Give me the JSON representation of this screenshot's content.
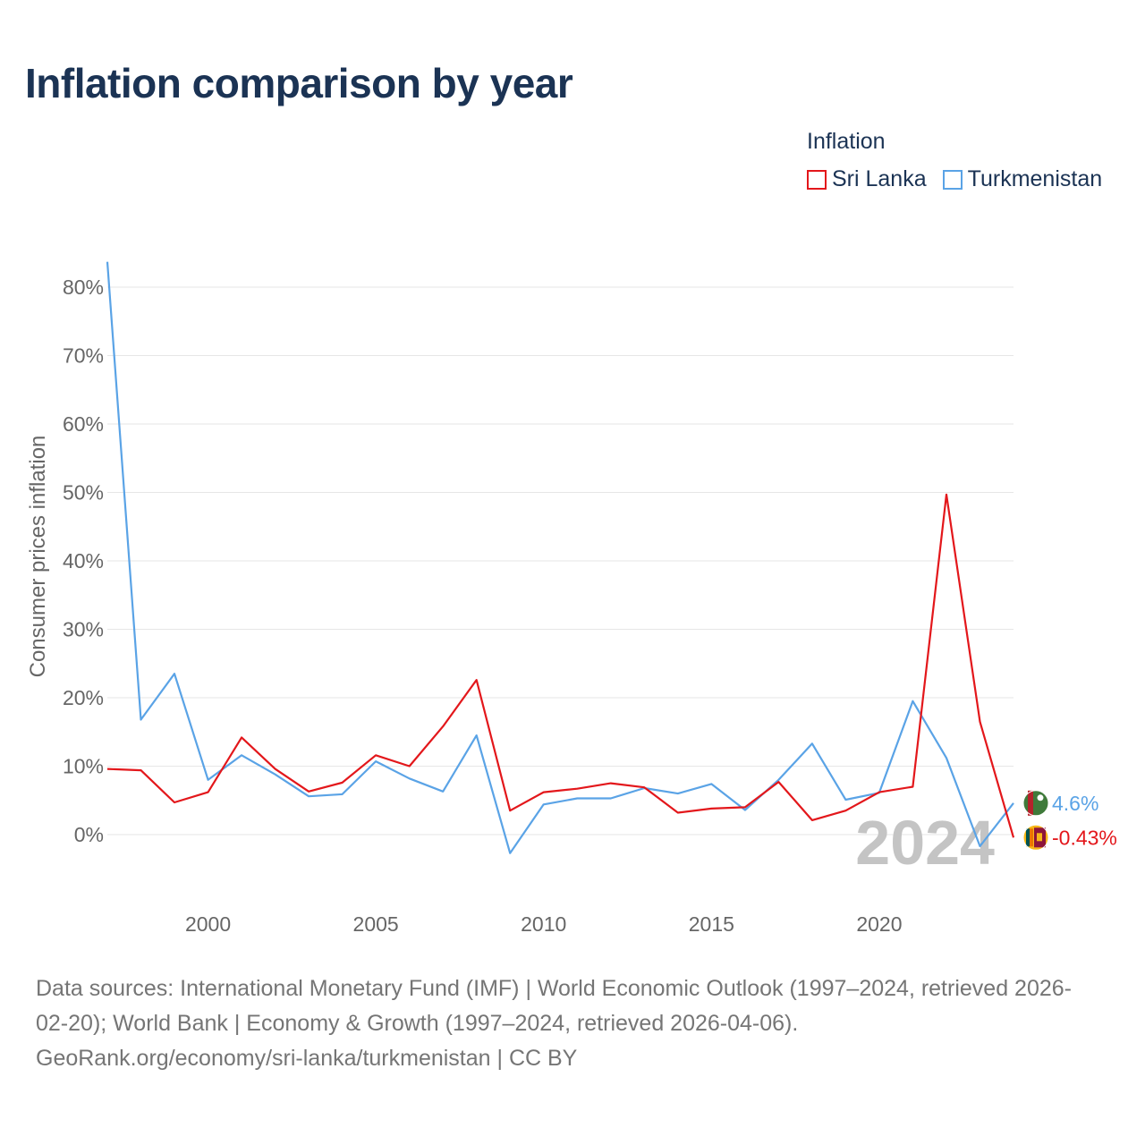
{
  "title": "Inflation comparison by year",
  "legend": {
    "title": "Inflation",
    "items": [
      {
        "label": "Sri Lanka",
        "color": "#e3171b"
      },
      {
        "label": "Turkmenistan",
        "color": "#5aa3e6"
      }
    ]
  },
  "chart_data": {
    "type": "line",
    "title": "Inflation comparison by year",
    "xlabel": "",
    "ylabel": "Consumer prices inflation",
    "x": [
      1997,
      1998,
      1999,
      2000,
      2001,
      2002,
      2003,
      2004,
      2005,
      2006,
      2007,
      2008,
      2009,
      2010,
      2011,
      2012,
      2013,
      2014,
      2015,
      2016,
      2017,
      2018,
      2019,
      2020,
      2021,
      2022,
      2023,
      2024
    ],
    "xlim": [
      1997,
      2024
    ],
    "xticks": [
      2000,
      2005,
      2010,
      2015,
      2020
    ],
    "ylim": [
      -10,
      85
    ],
    "yticks": [
      0,
      10,
      20,
      30,
      40,
      50,
      60,
      70,
      80
    ],
    "ytick_labels": [
      "0%",
      "10%",
      "20%",
      "30%",
      "40%",
      "50%",
      "60%",
      "70%",
      "80%"
    ],
    "grid": true,
    "legend_position": "top-right",
    "series": [
      {
        "name": "Turkmenistan",
        "color": "#5aa3e6",
        "values": [
          83.7,
          16.8,
          23.5,
          8.0,
          11.6,
          8.8,
          5.6,
          5.9,
          10.7,
          8.2,
          6.3,
          14.5,
          -2.7,
          4.4,
          5.3,
          5.3,
          6.8,
          6.0,
          7.4,
          3.6,
          8.0,
          13.3,
          5.1,
          6.1,
          19.5,
          11.2,
          -1.7,
          4.6
        ],
        "end_label": "4.6%"
      },
      {
        "name": "Sri Lanka",
        "color": "#e3171b",
        "values": [
          9.6,
          9.4,
          4.7,
          6.2,
          14.2,
          9.6,
          6.3,
          7.6,
          11.6,
          10.0,
          15.8,
          22.6,
          3.5,
          6.2,
          6.7,
          7.5,
          6.9,
          3.2,
          3.8,
          4.0,
          7.7,
          2.1,
          3.5,
          6.2,
          7.0,
          49.7,
          16.5,
          -0.43
        ],
        "end_label": "-0.43%"
      }
    ],
    "annotation": "2024"
  },
  "footer": {
    "line1": "Data sources: International Monetary Fund (IMF) | World Economic Outlook (1997–2024, retrieved 2026-",
    "line2": "02-20); World Bank | Economy & Growth (1997–2024, retrieved 2026-04-06).",
    "line3": "GeoRank.org/economy/sri-lanka/turkmenistan | CC BY"
  }
}
